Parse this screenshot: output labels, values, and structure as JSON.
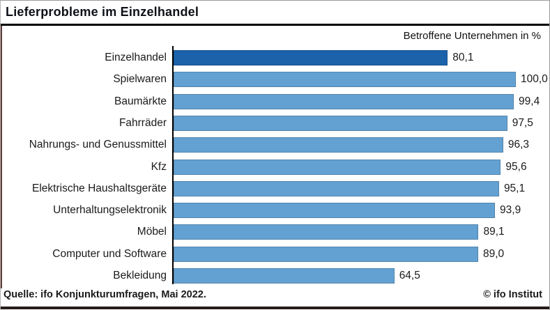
{
  "header": {
    "title": "Lieferprobleme im Einzelhandel",
    "subtitle": "Betroffene Unternehmen in %"
  },
  "footer": {
    "source": "Quelle: ifo Konjunkturumfragen, Mai 2022.",
    "copyright": "© ifo Institut"
  },
  "colors": {
    "highlight_bar": "#1b62ab",
    "default_bar": "#63a1d2",
    "axis": "#000000",
    "title_rule": "#000000",
    "left_accent": "#5e3d38",
    "bottom_accent": "#261c19"
  },
  "chart_data": {
    "type": "bar",
    "orientation": "horizontal",
    "title": "Lieferprobleme im Einzelhandel",
    "xlabel": "Betroffene Unternehmen in %",
    "xlim": [
      0,
      100
    ],
    "grid": false,
    "legend": false,
    "highlight_index": 0,
    "categories": [
      "Einzelhandel",
      "Spielwaren",
      "Baumärkte",
      "Fahrräder",
      "Nahrungs- und Genussmittel",
      "Kfz",
      "Elektrische Haushaltsgeräte",
      "Unterhaltungselektronik",
      "Möbel",
      "Computer und Software",
      "Bekleidung"
    ],
    "values": [
      80.1,
      100.0,
      99.4,
      97.5,
      96.3,
      95.6,
      95.1,
      93.9,
      89.1,
      89.0,
      64.5
    ],
    "value_labels": [
      "80,1",
      "100,0",
      "99,4",
      "97,5",
      "96,3",
      "95,6",
      "95,1",
      "93,9",
      "89,1",
      "89,0",
      "64,5"
    ]
  }
}
